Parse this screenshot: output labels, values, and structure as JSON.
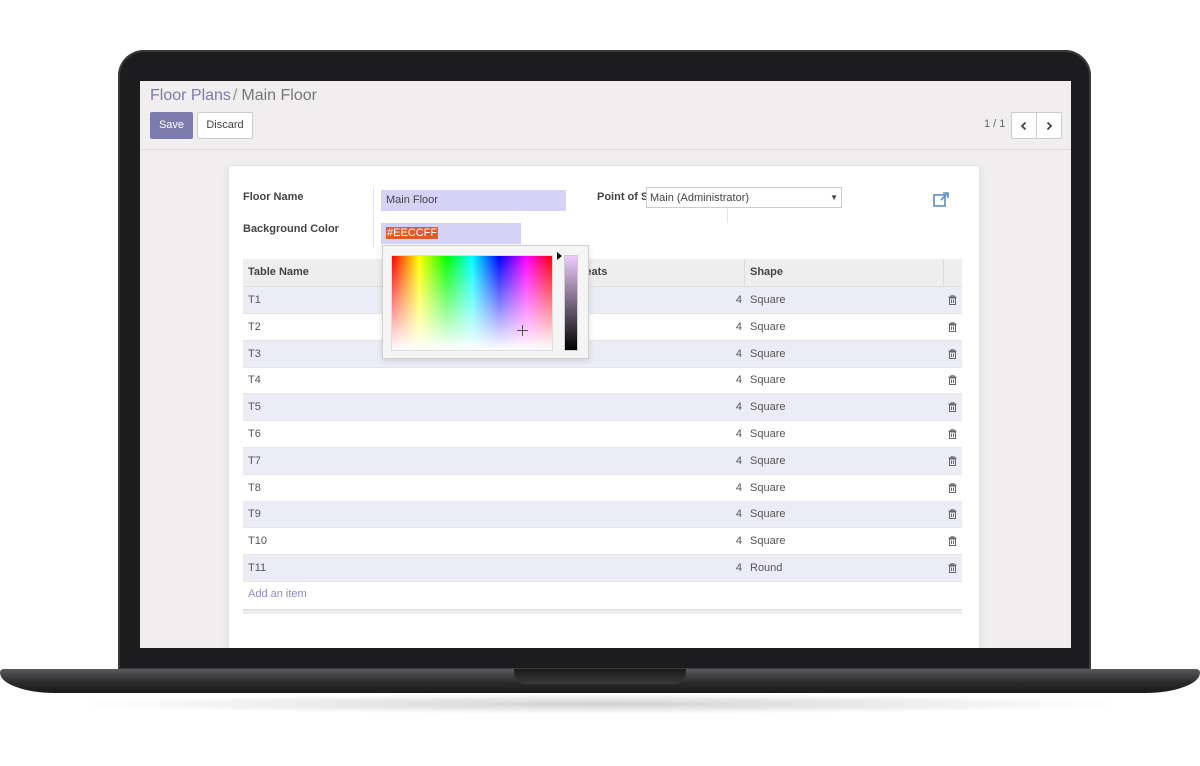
{
  "breadcrumb": {
    "parent": "Floor Plans",
    "separator": "/",
    "current": "Main Floor"
  },
  "buttons": {
    "save": "Save",
    "discard": "Discard"
  },
  "pager": {
    "value": "1 / 1",
    "prev_icon": "chevron-left-icon",
    "next_icon": "chevron-right-icon"
  },
  "form": {
    "floor_name_label": "Floor Name",
    "floor_name_value": "Main Floor",
    "background_color_label": "Background Color",
    "background_color_value": "#EECCFF",
    "pos_label": "Point of Sale",
    "pos_value": "Main (Administrator)"
  },
  "table": {
    "columns": {
      "name": "Table Name",
      "seats": "Seats",
      "shape": "Shape"
    },
    "rows": [
      {
        "name": "T1",
        "seats": "4",
        "shape": "Square"
      },
      {
        "name": "T2",
        "seats": "4",
        "shape": "Square"
      },
      {
        "name": "T3",
        "seats": "4",
        "shape": "Square"
      },
      {
        "name": "T4",
        "seats": "4",
        "shape": "Square"
      },
      {
        "name": "T5",
        "seats": "4",
        "shape": "Square"
      },
      {
        "name": "T6",
        "seats": "4",
        "shape": "Square"
      },
      {
        "name": "T7",
        "seats": "4",
        "shape": "Square"
      },
      {
        "name": "T8",
        "seats": "4",
        "shape": "Square"
      },
      {
        "name": "T9",
        "seats": "4",
        "shape": "Square"
      },
      {
        "name": "T10",
        "seats": "4",
        "shape": "Square"
      },
      {
        "name": "T11",
        "seats": "4",
        "shape": "Round"
      }
    ],
    "add_item": "Add an item"
  },
  "colors": {
    "accent": "#7c7bad",
    "field_bg": "#d4d3f7",
    "row_alt": "#ececf6",
    "selected_color": "#EECCFF"
  }
}
